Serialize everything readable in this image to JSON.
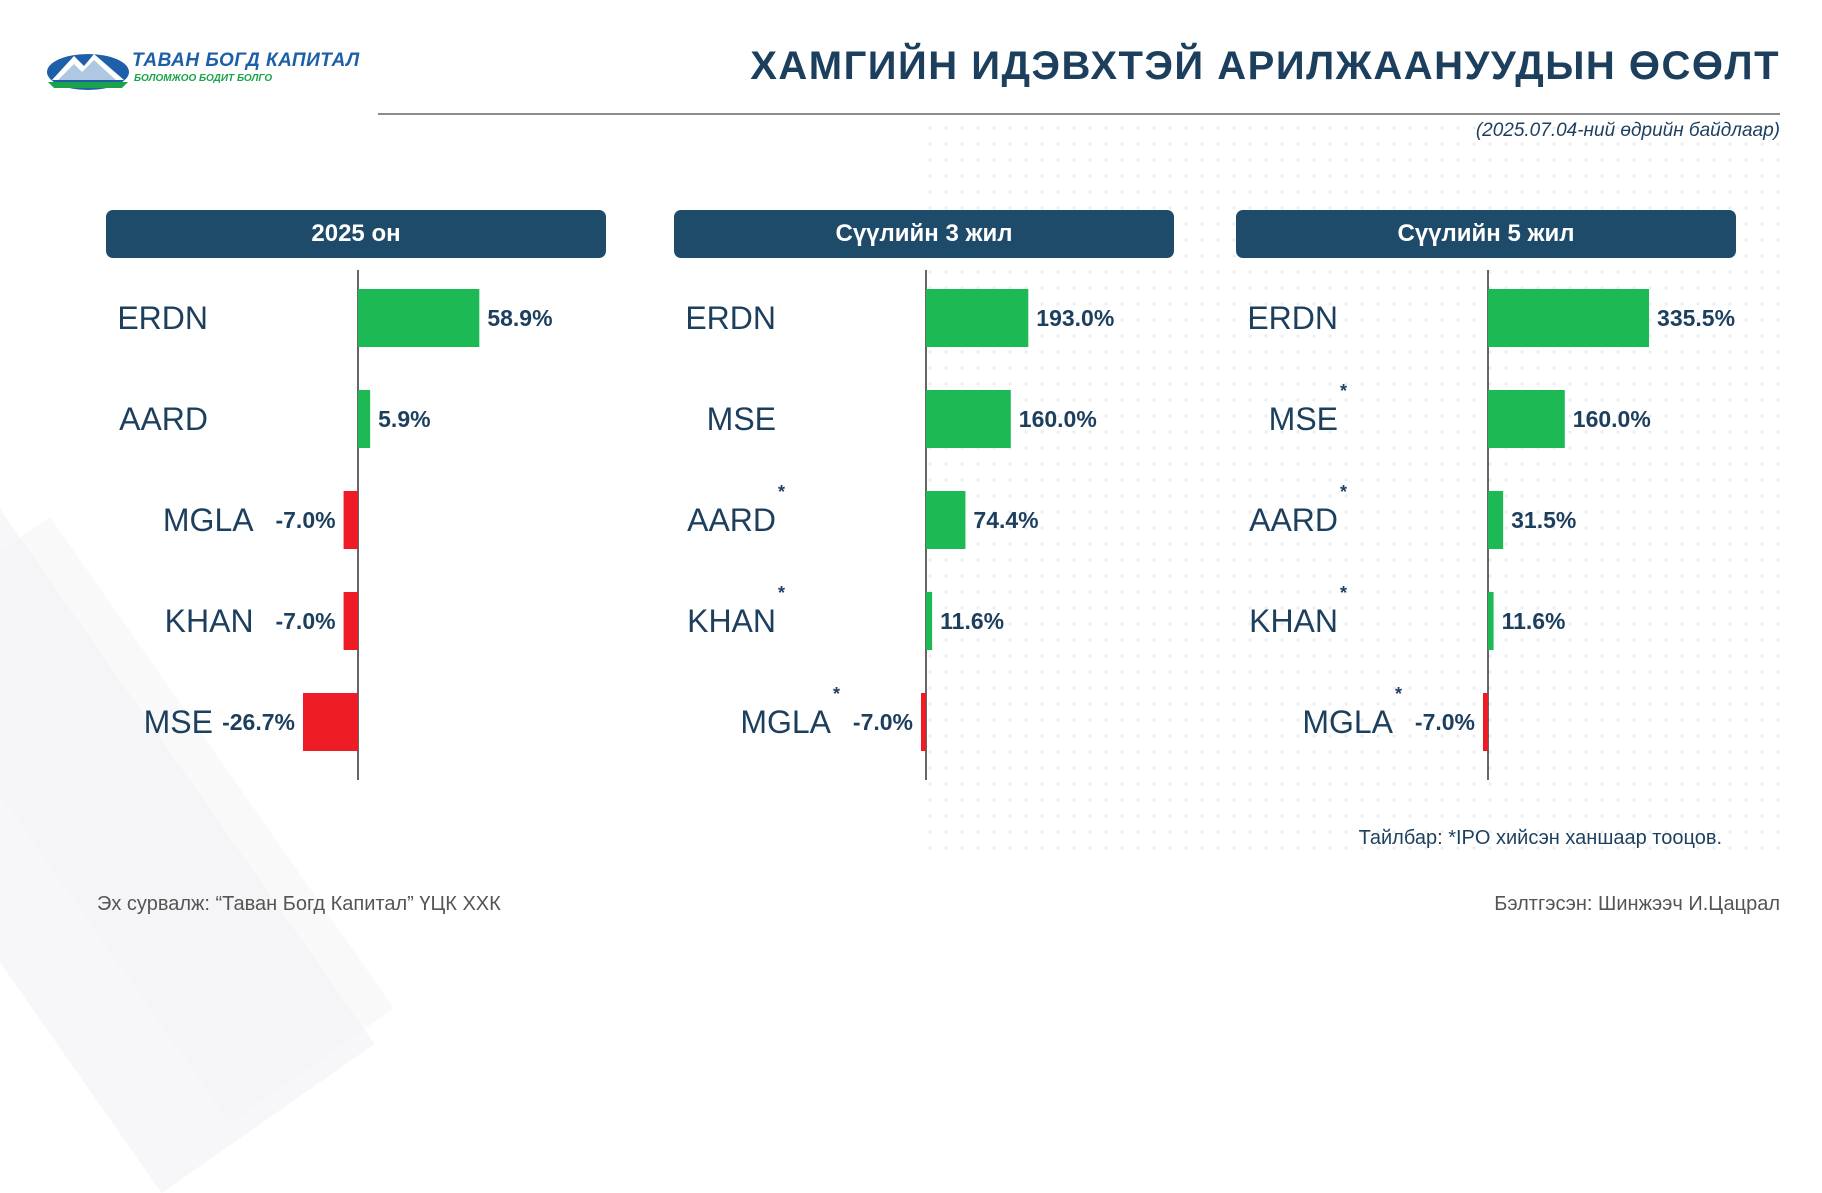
{
  "header": {
    "logo_name": "ТАВАН БОГД КАПИТАЛ",
    "logo_slogan": "БОЛОМЖОО БОДИТ БОЛГО",
    "title": "ХАМГИЙН ИДЭВХТЭЙ АРИЛЖААНУУДЫН ӨСӨЛТ",
    "subtitle": "(2025.07.04-ний өдрийн байдлаар)"
  },
  "colors": {
    "positive": "#1db954",
    "negative": "#ee1c24",
    "header_bg": "#1f4b6b",
    "title": "#1d3f5e"
  },
  "chart_data": [
    {
      "type": "bar",
      "orientation": "horizontal",
      "title": "2025 он",
      "categories": [
        "ERDN",
        "AARD",
        "MGLA",
        "KHAN",
        "MSE"
      ],
      "values": [
        58.9,
        5.9,
        -7.0,
        -7.0,
        -26.7
      ],
      "value_labels": [
        "58.9%",
        "5.9%",
        "-7.0%",
        "-7.0%",
        "-26.7%"
      ],
      "ipo_marked": [
        false,
        false,
        false,
        false,
        false
      ],
      "xlim": [
        -28,
        100
      ]
    },
    {
      "type": "bar",
      "orientation": "horizontal",
      "title": "Сүүлийн 3 жил",
      "categories": [
        "ERDN",
        "MSE",
        "AARD",
        "KHAN",
        "MGLA"
      ],
      "values": [
        193.0,
        160.0,
        74.4,
        11.6,
        -7.0
      ],
      "value_labels": [
        "193.0%",
        "160.0%",
        "74.4%",
        "11.6%",
        "-7.0%"
      ],
      "ipo_marked": [
        false,
        false,
        true,
        true,
        true
      ],
      "xlim": [
        -7,
        400
      ]
    },
    {
      "type": "bar",
      "orientation": "horizontal",
      "title": "Сүүлийн 5 жил",
      "categories": [
        "ERDN",
        "MSE",
        "AARD",
        "KHAN",
        "MGLA"
      ],
      "values": [
        335.5,
        160.0,
        31.5,
        11.6,
        -7.0
      ],
      "value_labels": [
        "335.5%",
        "160.0%",
        "31.5%",
        "11.6%",
        "-7.0%"
      ],
      "ipo_marked": [
        false,
        true,
        true,
        true,
        true
      ],
      "xlim": [
        -7,
        420
      ]
    }
  ],
  "footer": {
    "note": "Тайлбар: *IPO хийсэн ханшаар тооцов.",
    "source": "Эх сурвалж: “Таван Богд Капитал” ҮЦК ХХК",
    "author": "Бэлтгэсэн: Шинжээч И.Цацрал"
  }
}
